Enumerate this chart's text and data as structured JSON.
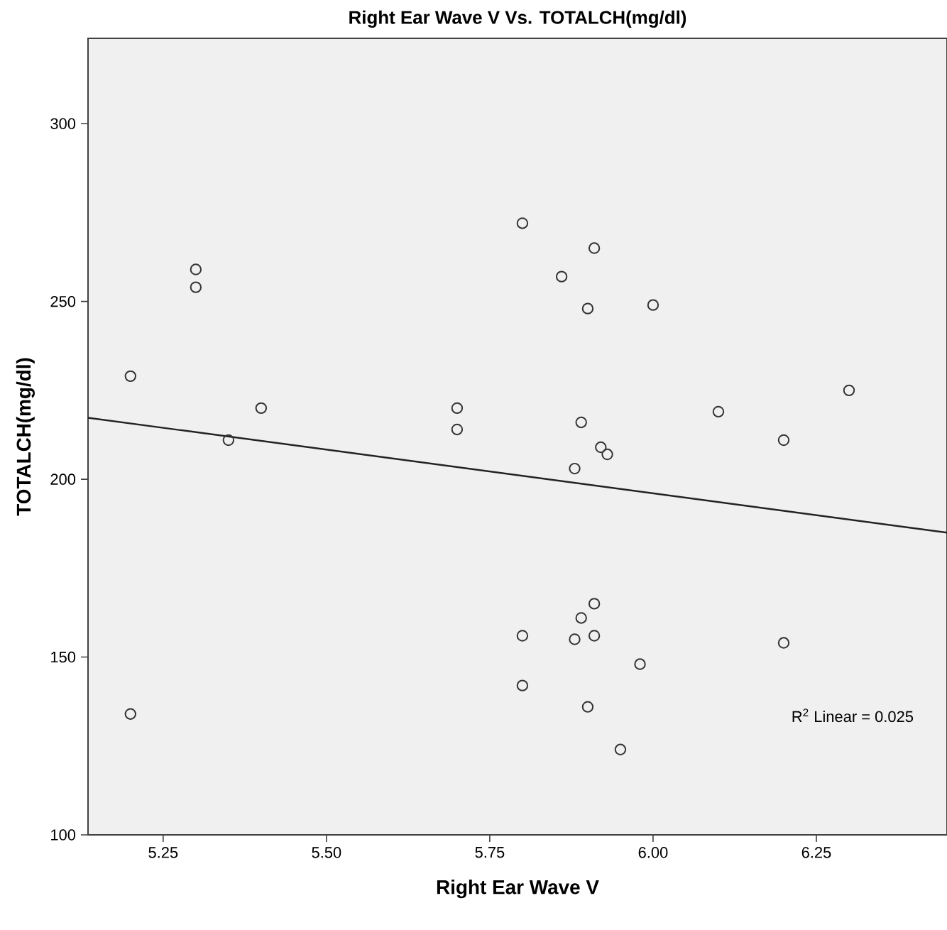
{
  "chart_data": {
    "type": "scatter",
    "title": "Right Ear Wave V Vs. TOTALCH(mg/dl)",
    "xlabel": "Right Ear Wave V",
    "ylabel": "TOTALCH(mg/dl)",
    "annotations": [
      "R$^{2}$ Linear = 0.025"
    ],
    "xlim": [
      5.135,
      6.45
    ],
    "ylim": [
      100,
      324
    ],
    "xticks": [
      5.25,
      {
        "value": 5.5,
        "label": "5.50"
      },
      5.75,
      {
        "value": 6.0,
        "label": "6.00"
      },
      6.25
    ],
    "yticks": [
      100,
      150,
      200,
      250,
      300
    ],
    "grid": false,
    "series": [
      {
        "color": "#333333",
        "marker": "circle",
        "x": [
          5.2,
          5.3,
          5.3,
          5.35,
          5.4,
          5.7,
          5.7,
          5.2,
          5.8,
          5.91,
          5.86,
          5.9,
          6.0,
          6.3,
          6.1,
          6.2,
          5.89,
          5.92,
          5.93,
          5.88,
          5.91,
          5.89,
          5.8,
          5.88,
          5.91,
          6.2,
          5.98,
          5.8,
          5.9,
          5.95
        ],
        "values": [
          229,
          259,
          254,
          211,
          220,
          220,
          214,
          134,
          272,
          265,
          257,
          248,
          249,
          225,
          219,
          211,
          216,
          209,
          207,
          203,
          165,
          161,
          156,
          155,
          156,
          154,
          148,
          142,
          136,
          124
        ]
      },
      {
        "type": "line",
        "marker": "none",
        "color": "#222222",
        "x": [
          5.135,
          6.45
        ],
        "values": [
          217.3,
          185
        ]
      }
    ]
  }
}
